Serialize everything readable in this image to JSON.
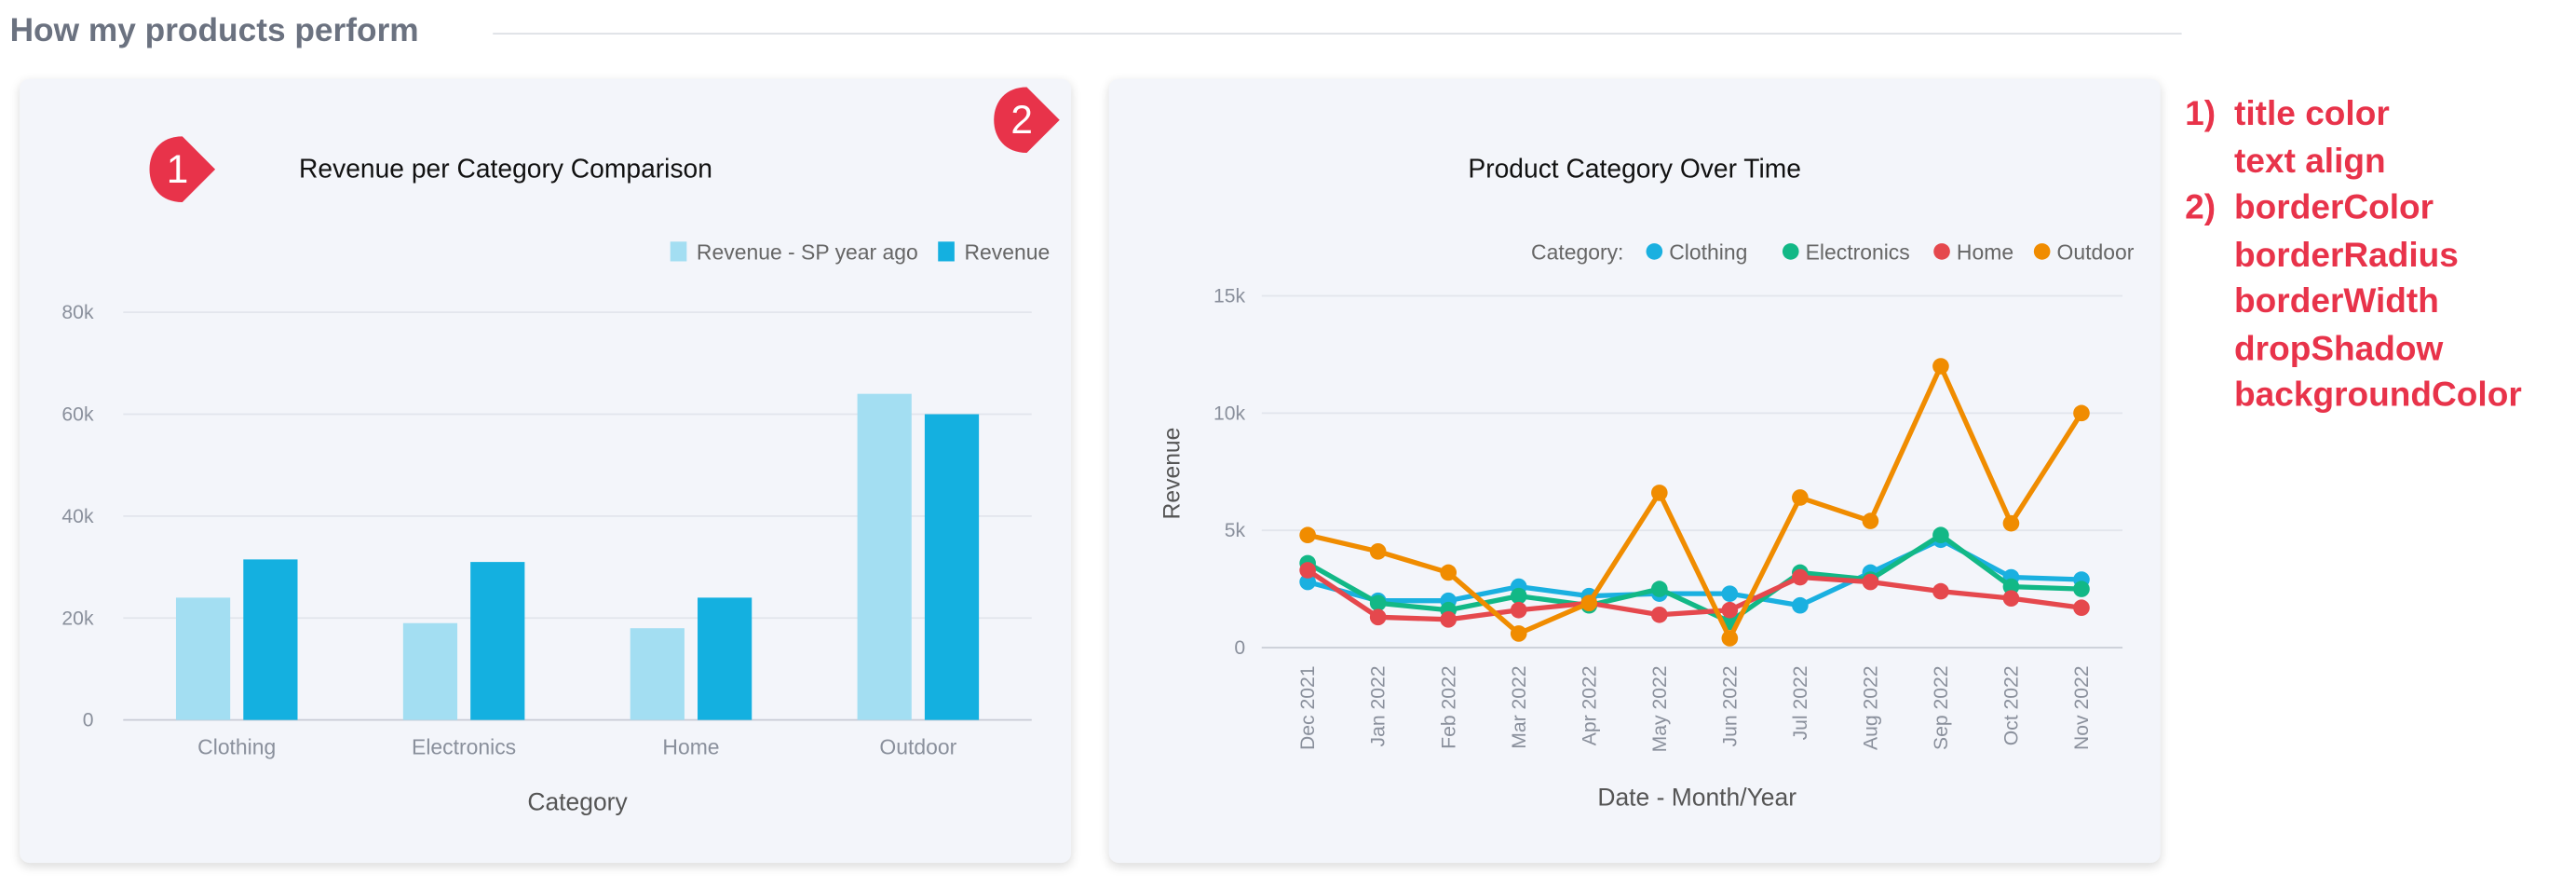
{
  "section": {
    "title": "How my products perform"
  },
  "annotations": {
    "badges": [
      "1",
      "2"
    ],
    "notes": [
      {
        "num": "1)",
        "text": "title color"
      },
      {
        "num": "",
        "text": "text align"
      },
      {
        "num": "2)",
        "text": "borderColor"
      },
      {
        "num": "",
        "text": "borderRadius"
      },
      {
        "num": "",
        "text": "borderWidth"
      },
      {
        "num": "",
        "text": "dropShadow"
      },
      {
        "num": "",
        "text": "backgroundColor"
      }
    ],
    "color": "#e8334a"
  },
  "chart_data": [
    {
      "type": "bar",
      "title": "Revenue per Category Comparison",
      "categories": [
        "Clothing",
        "Electronics",
        "Home",
        "Outdoor"
      ],
      "series": [
        {
          "name": "Revenue - SP year ago",
          "values": [
            24000,
            19000,
            18000,
            64000
          ],
          "color": "#a3def2"
        },
        {
          "name": "Revenue",
          "values": [
            31500,
            31000,
            24000,
            60000
          ],
          "color": "#14b0e0"
        }
      ],
      "xlabel": "Category",
      "ylabel": "",
      "ylim": [
        0,
        80000
      ],
      "yticks": [
        "0",
        "20k",
        "40k",
        "60k",
        "80k"
      ],
      "grid": true,
      "legend": "top-right"
    },
    {
      "type": "line",
      "title": "Product Category Over Time",
      "legend_title": "Category:",
      "x": [
        "Dec 2021",
        "Jan 2022",
        "Feb 2022",
        "Mar 2022",
        "Apr 2022",
        "May 2022",
        "Jun 2022",
        "Jul 2022",
        "Aug 2022",
        "Sep 2022",
        "Oct 2022",
        "Nov 2022"
      ],
      "series": [
        {
          "name": "Clothing",
          "color": "#1ab0e0",
          "values": [
            2800,
            2000,
            2000,
            2600,
            2200,
            2300,
            2300,
            1800,
            3200,
            4600,
            3000,
            2900
          ]
        },
        {
          "name": "Electronics",
          "color": "#12b886",
          "values": [
            3600,
            1900,
            1600,
            2200,
            1800,
            2500,
            1100,
            3200,
            2900,
            4800,
            2600,
            2500
          ]
        },
        {
          "name": "Home",
          "color": "#e5484d",
          "values": [
            3300,
            1300,
            1200,
            1600,
            1900,
            1400,
            1600,
            3000,
            2800,
            2400,
            2100,
            1700
          ]
        },
        {
          "name": "Outdoor",
          "color": "#f08c00",
          "values": [
            4800,
            4100,
            3200,
            600,
            1900,
            6600,
            400,
            6400,
            5400,
            12000,
            5300,
            10000
          ]
        }
      ],
      "xlabel": "Date - Month/Year",
      "ylabel": "Revenue",
      "ylim": [
        0,
        15000
      ],
      "yticks": [
        "0",
        "5k",
        "10k",
        "15k"
      ],
      "grid": true,
      "legend": "top-right"
    }
  ]
}
